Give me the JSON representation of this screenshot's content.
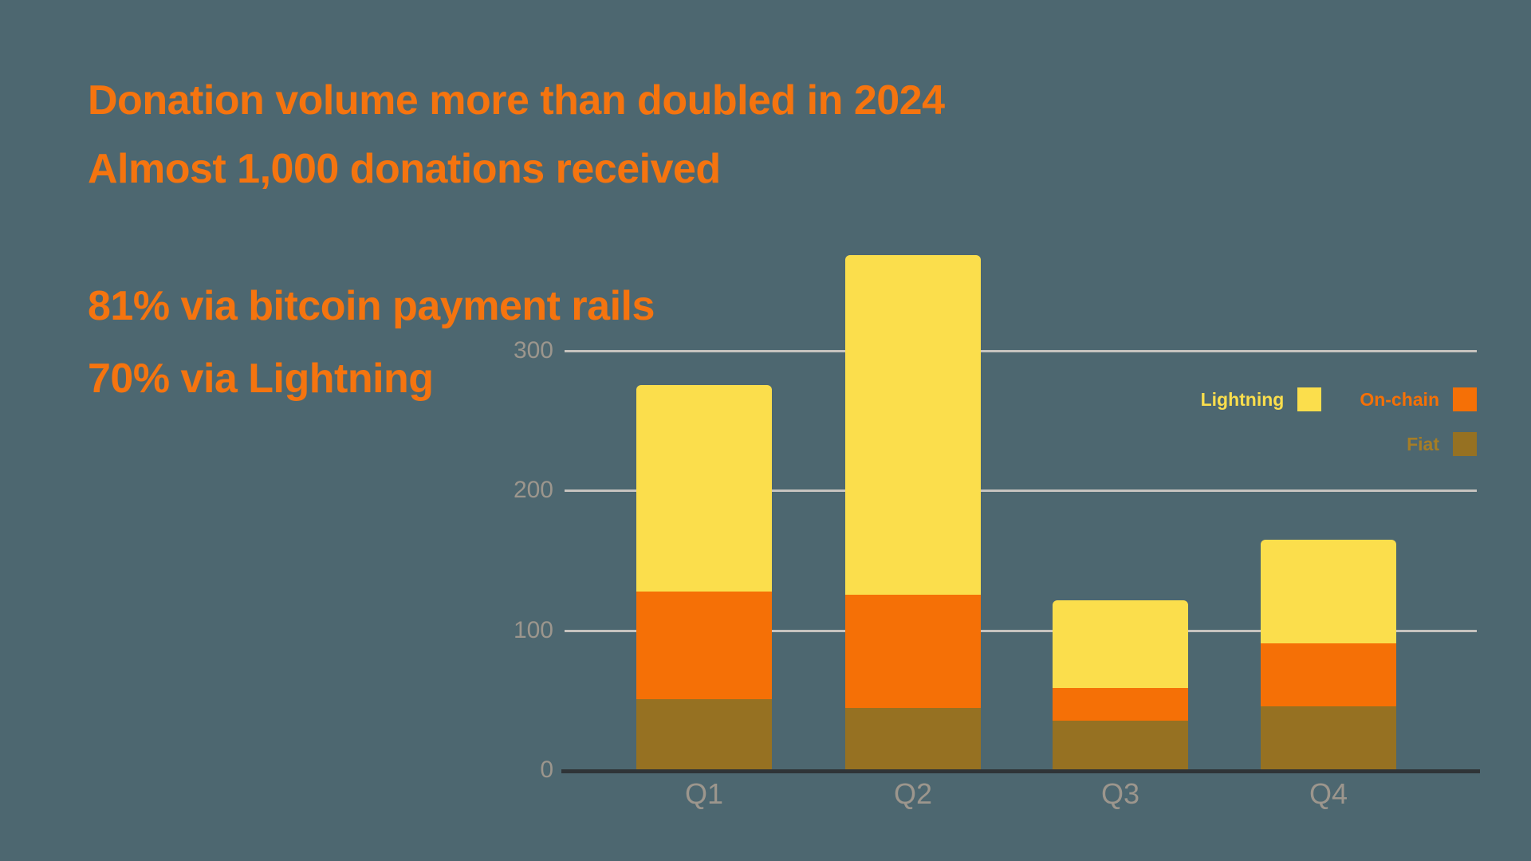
{
  "header": {
    "line1": "Donation volume more than doubled in 2024",
    "line2": "Almost 1,000 donations received"
  },
  "stats": {
    "line1": "81% via bitcoin payment rails",
    "line2": "70% via Lightning"
  },
  "colors": {
    "background": "#4D6770",
    "headline": "#F5740F",
    "axis_text": "#9C968D",
    "gridline": "#C6C3BF",
    "axis_line": "#2F3437",
    "lightning": "#FBDE4C",
    "on_chain": "#F57006",
    "fiat": "#967122",
    "fiat_label": "#A67D25"
  },
  "chart_data": {
    "type": "bar",
    "stacked": true,
    "title": "",
    "xlabel": "",
    "ylabel": "",
    "categories": [
      "Q1",
      "Q2",
      "Q3",
      "Q4"
    ],
    "series": [
      {
        "name": "Lightning",
        "color": "#FBDE4C",
        "values": [
          148,
          243,
          63,
          74
        ]
      },
      {
        "name": "On-chain",
        "color": "#F57006",
        "values": [
          77,
          81,
          23,
          45
        ]
      },
      {
        "name": "Fiat",
        "color": "#967122",
        "values": [
          50,
          44,
          35,
          45
        ]
      }
    ],
    "stack_order_bottom_to_top": [
      "Fiat",
      "On-chain",
      "Lightning"
    ],
    "totals": [
      275,
      368,
      121,
      164
    ],
    "y_ticks": [
      0,
      100,
      200,
      300
    ],
    "ylim": [
      0,
      300
    ],
    "grid": true,
    "legend_position": "right",
    "legend_rows": [
      [
        "Lightning",
        "On-chain"
      ],
      [
        "Fiat"
      ]
    ]
  }
}
